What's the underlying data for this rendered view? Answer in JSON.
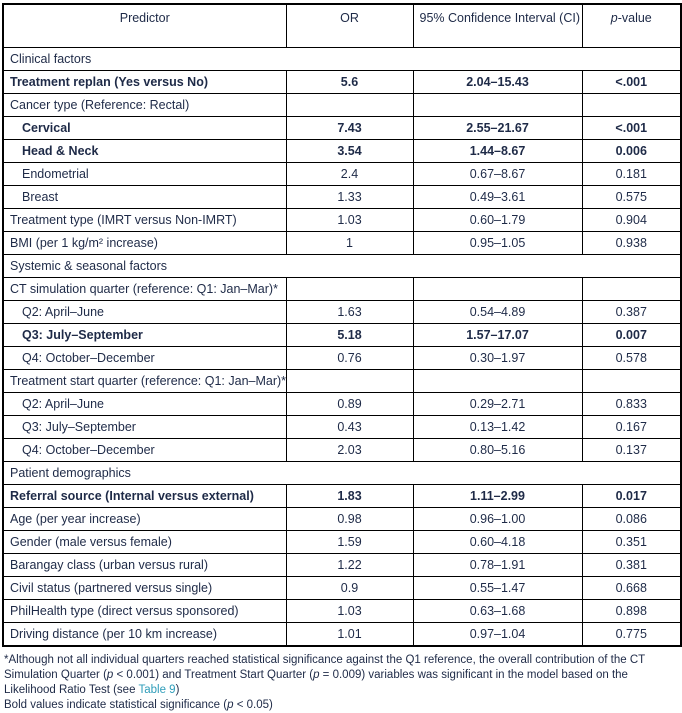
{
  "colors": {
    "text": "#1E2A47",
    "link": "#2F9DBA",
    "border": "#000000"
  },
  "table": {
    "headers": [
      {
        "text": "Predictor"
      },
      {
        "text": "OR"
      },
      {
        "text": "95% Confidence Interval (CI)"
      },
      {
        "italic": "p",
        "text": "-value"
      }
    ],
    "rows": [
      {
        "type": "section",
        "label": "Clinical factors"
      },
      {
        "type": "data",
        "label": "Treatment replan (Yes versus No)",
        "or": "5.6",
        "ci": "2.04–15.43",
        "p": "<.001",
        "bold": true
      },
      {
        "type": "group",
        "label": "Cancer type (Reference: Rectal)"
      },
      {
        "type": "data",
        "label": "Cervical",
        "indent": true,
        "or": "7.43",
        "ci": "2.55–21.67",
        "p": "<.001",
        "bold": true
      },
      {
        "type": "data",
        "label": "Head & Neck",
        "indent": true,
        "or": "3.54",
        "ci": "1.44–8.67",
        "p": "0.006",
        "bold": true
      },
      {
        "type": "data",
        "label": "Endometrial",
        "indent": true,
        "or": "2.4",
        "ci": "0.67–8.67",
        "p": "0.181"
      },
      {
        "type": "data",
        "label": "Breast",
        "indent": true,
        "or": "1.33",
        "ci": "0.49–3.61",
        "p": "0.575"
      },
      {
        "type": "data",
        "label": "Treatment type (IMRT versus Non-IMRT)",
        "or": "1.03",
        "ci": "0.60–1.79",
        "p": "0.904"
      },
      {
        "type": "data",
        "label": "BMI (per 1 kg/m² increase)",
        "or": "1",
        "ci": "0.95–1.05",
        "p": "0.938"
      },
      {
        "type": "section",
        "label": "Systemic & seasonal factors"
      },
      {
        "type": "group",
        "label": "CT simulation quarter (reference: Q1: Jan–Mar)*"
      },
      {
        "type": "data",
        "label": "Q2: April–June",
        "indent": true,
        "or": "1.63",
        "ci": "0.54–4.89",
        "p": "0.387"
      },
      {
        "type": "data",
        "label": "Q3: July–September",
        "indent": true,
        "or": "5.18",
        "ci": "1.57–17.07",
        "p": "0.007",
        "bold": true
      },
      {
        "type": "data",
        "label": "Q4: October–December",
        "indent": true,
        "or": "0.76",
        "ci": "0.30–1.97",
        "p": "0.578"
      },
      {
        "type": "group",
        "label": "Treatment start quarter (reference: Q1: Jan–Mar)*"
      },
      {
        "type": "data",
        "label": "Q2: April–June",
        "indent": true,
        "or": "0.89",
        "ci": "0.29–2.71",
        "p": "0.833"
      },
      {
        "type": "data",
        "label": "Q3: July–September",
        "indent": true,
        "or": "0.43",
        "ci": "0.13–1.42",
        "p": "0.167"
      },
      {
        "type": "data",
        "label": "Q4: October–December",
        "indent": true,
        "or": "2.03",
        "ci": "0.80–5.16",
        "p": "0.137"
      },
      {
        "type": "section",
        "label": "Patient demographics"
      },
      {
        "type": "data",
        "label": "Referral source (Internal versus external)",
        "or": "1.83",
        "ci": "1.11–2.99",
        "p": "0.017",
        "bold": true
      },
      {
        "type": "data",
        "label": "Age (per year increase)",
        "or": "0.98",
        "ci": "0.96–1.00",
        "p": "0.086"
      },
      {
        "type": "data",
        "label": "Gender (male versus female)",
        "or": "1.59",
        "ci": "0.60–4.18",
        "p": "0.351"
      },
      {
        "type": "data",
        "label": "Barangay class (urban versus rural)",
        "or": "1.22",
        "ci": "0.78–1.91",
        "p": "0.381"
      },
      {
        "type": "data",
        "label": "Civil status (partnered versus single)",
        "or": "0.9",
        "ci": "0.55–1.47",
        "p": "0.668"
      },
      {
        "type": "data",
        "label": "PhilHealth type (direct versus sponsored)",
        "or": "1.03",
        "ci": "0.63–1.68",
        "p": "0.898"
      },
      {
        "type": "data",
        "label": "Driving distance (per 10 km increase)",
        "or": "1.01",
        "ci": "0.97–1.04",
        "p": "0.775"
      }
    ]
  },
  "footnotes": {
    "note1": [
      {
        "t": "*Although not all individual quarters reached statistical significance against the Q1 reference, the overall contribution of the CT Simulation Quarter ("
      },
      {
        "t": "p",
        "i": true
      },
      {
        "t": " < 0.001) and Treatment Start Quarter ("
      },
      {
        "t": "p",
        "i": true
      },
      {
        "t": " = 0.009) variables was significant in the model based on the Likelihood Ratio Test (see "
      },
      {
        "t": "Table 9",
        "link": true
      },
      {
        "t": ")"
      }
    ],
    "note2": [
      {
        "t": "Bold values indicate statistical significance ("
      },
      {
        "t": "p",
        "i": true
      },
      {
        "t": " < 0.05)"
      }
    ]
  }
}
